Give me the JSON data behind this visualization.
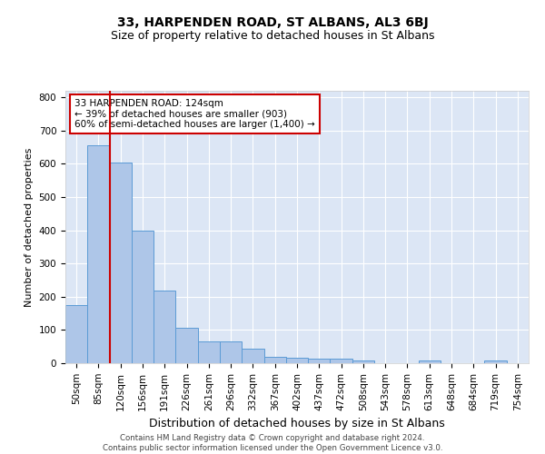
{
  "title": "33, HARPENDEN ROAD, ST ALBANS, AL3 6BJ",
  "subtitle": "Size of property relative to detached houses in St Albans",
  "xlabel": "Distribution of detached houses by size in St Albans",
  "ylabel": "Number of detached properties",
  "bar_labels": [
    "50sqm",
    "85sqm",
    "120sqm",
    "156sqm",
    "191sqm",
    "226sqm",
    "261sqm",
    "296sqm",
    "332sqm",
    "367sqm",
    "402sqm",
    "437sqm",
    "472sqm",
    "508sqm",
    "543sqm",
    "578sqm",
    "613sqm",
    "648sqm",
    "684sqm",
    "719sqm",
    "754sqm"
  ],
  "bar_values": [
    175,
    655,
    605,
    400,
    218,
    107,
    65,
    65,
    45,
    18,
    17,
    15,
    15,
    8,
    0,
    0,
    8,
    0,
    0,
    7,
    0
  ],
  "bar_color": "#aec6e8",
  "bar_edgecolor": "#5b9bd5",
  "vline_index": 2,
  "vline_color": "#cc0000",
  "annotation_text": "33 HARPENDEN ROAD: 124sqm\n← 39% of detached houses are smaller (903)\n60% of semi-detached houses are larger (1,400) →",
  "annotation_box_color": "#ffffff",
  "annotation_box_edgecolor": "#cc0000",
  "ylim": [
    0,
    820
  ],
  "yticks": [
    0,
    100,
    200,
    300,
    400,
    500,
    600,
    700,
    800
  ],
  "background_color": "#dce6f5",
  "footer_text": "Contains HM Land Registry data © Crown copyright and database right 2024.\nContains public sector information licensed under the Open Government Licence v3.0.",
  "title_fontsize": 10,
  "subtitle_fontsize": 9,
  "annotation_fontsize": 7.5,
  "ylabel_fontsize": 8,
  "xlabel_fontsize": 9,
  "tick_fontsize": 7.5
}
